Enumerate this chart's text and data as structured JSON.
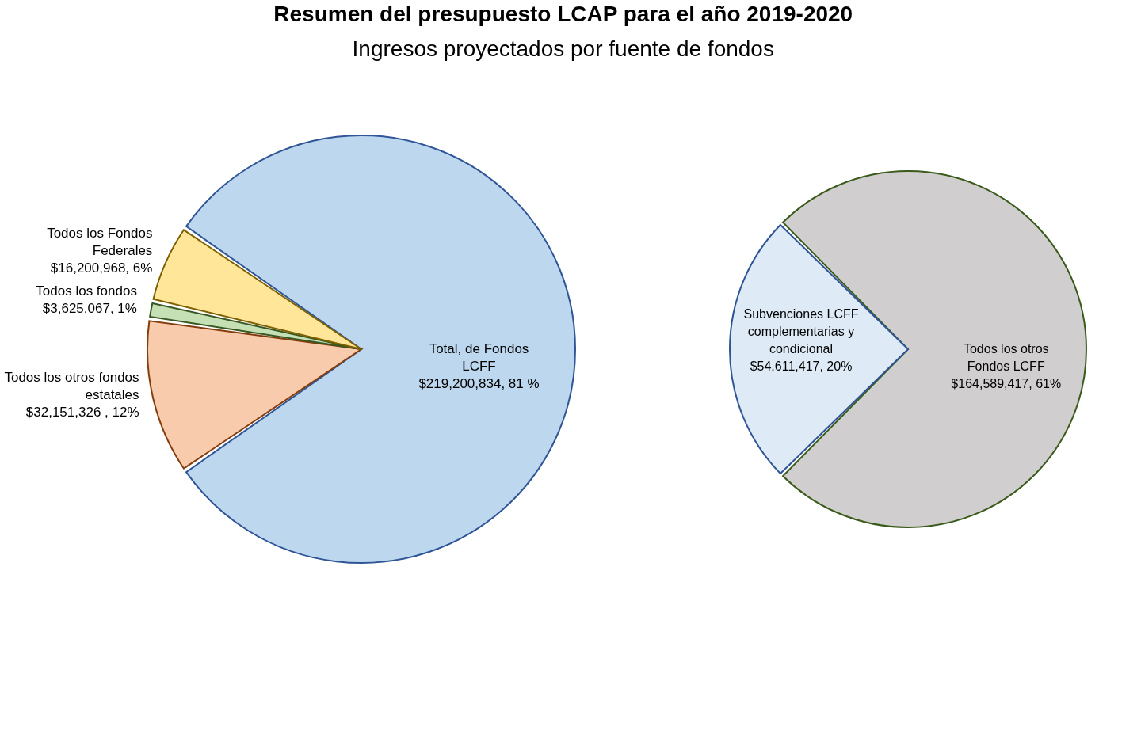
{
  "chart_data": [
    {
      "type": "pie",
      "title": "Resumen del presupuesto LCAP para el año 2019-2020",
      "subtitle": "Ingresos proyectados por fuente de fondos",
      "categories": [
        "Total, de Fondos LCFF",
        "Todos los otros fondos estatales",
        "Todos los fondos",
        "Todos los Fondos Federales"
      ],
      "values": [
        219200834,
        32151326,
        3625067,
        16200968
      ],
      "value_labels": [
        "$219,200,834, 81 %",
        "$32,151,326 , 12%",
        "$3,625,067, 1%",
        "$16,200,968, 6%"
      ],
      "colors": [
        "#bdd7ee",
        "#f8cbad",
        "#c5e0b4",
        "#ffe699"
      ],
      "legend": false
    },
    {
      "type": "pie",
      "categories": [
        "Todos los otros Fondos LCFF",
        "Subvenciones LCFF complementarias y condicional"
      ],
      "values": [
        164589417,
        54611417
      ],
      "value_labels": [
        "$164,589,417, 61%",
        "$54,611,417, 20%"
      ],
      "colors": [
        "#d0cece",
        "#deebf7"
      ],
      "legend": false
    }
  ]
}
